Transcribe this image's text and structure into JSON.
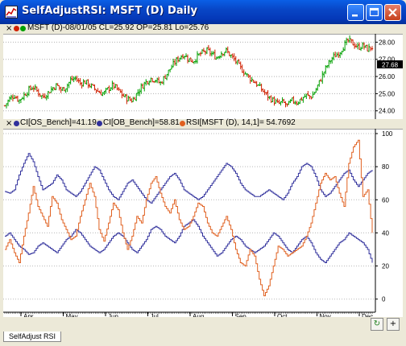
{
  "window": {
    "title": "SelfAdjustRSI: MSFT (D) Daily",
    "tab_label": "SelfAdjust RSI"
  },
  "price_pane": {
    "header": "MSFT (D)-08/01/05 CL=25.92 OP=25.81 Lo=25.76",
    "last_price_label": "27.68",
    "colors": {
      "up": "#00a000",
      "down": "#d02000"
    }
  },
  "indicator_pane": {
    "legend": [
      {
        "label": "CI[OS_Bench]=41.19",
        "color": "#30309c"
      },
      {
        "label": "CI[OB_Bench]=58.81",
        "color": "#30309c"
      },
      {
        "label": "RSI[MSFT (D), 14,1]= 54.7692",
        "color": "#e06020"
      }
    ]
  },
  "chart_data": [
    {
      "type": "bar",
      "title": "MSFT (D) Daily OHLC",
      "y_ticks": [
        "28.00",
        "27.00",
        "26.00",
        "25.00",
        "24.00"
      ],
      "ylim": [
        23.8,
        28.3
      ],
      "close_path": [
        24.3,
        24.7,
        24.9,
        24.6,
        24.9,
        25.2,
        25.4,
        25.1,
        24.8,
        25.0,
        25.3,
        25.5,
        25.2,
        25.4,
        25.8,
        25.9,
        25.6,
        25.7,
        25.5,
        25.3,
        25.1,
        25.0,
        25.3,
        25.5,
        25.2,
        24.9,
        24.7,
        24.6,
        25.0,
        25.4,
        25.7,
        25.9,
        25.8,
        25.6,
        26.0,
        26.4,
        26.8,
        27.1,
        27.3,
        27.0,
        26.9,
        27.2,
        27.4,
        27.5,
        27.3,
        27.1,
        27.4,
        27.5,
        27.2,
        26.9,
        26.5,
        26.2,
        25.9,
        25.7,
        25.4,
        25.1,
        24.8,
        24.6,
        24.4,
        24.5,
        24.3,
        24.6,
        24.5,
        24.7,
        24.9,
        24.8,
        25.2,
        25.8,
        26.4,
        26.9,
        27.2,
        27.4,
        27.8,
        28.1,
        27.9,
        27.7,
        27.8,
        27.6,
        27.7
      ]
    },
    {
      "type": "line",
      "title": "Self Adjusting RSI",
      "y_ticks": [
        "100",
        "80",
        "60",
        "40",
        "20",
        "0"
      ],
      "ylim": [
        -5,
        100
      ],
      "x_tick_labels": [
        "Apr.",
        "May",
        "Jun.",
        "Jul.",
        "Aug.",
        "Sep.",
        "Oct.",
        "Nov.",
        "Dec."
      ],
      "series": [
        {
          "name": "CI[OB_Bench]",
          "color": "#30309c",
          "values": [
            65,
            64,
            66,
            75,
            82,
            88,
            83,
            74,
            66,
            68,
            70,
            75,
            72,
            66,
            64,
            62,
            65,
            70,
            75,
            80,
            78,
            72,
            66,
            62,
            60,
            65,
            70,
            72,
            68,
            64,
            60,
            58,
            62,
            66,
            70,
            74,
            76,
            72,
            66,
            64,
            62,
            60,
            62,
            66,
            70,
            74,
            78,
            82,
            80,
            76,
            70,
            66,
            64,
            62,
            62,
            64,
            66,
            64,
            62,
            60,
            64,
            70,
            74,
            80,
            82,
            80,
            74,
            66,
            62,
            64,
            68,
            72,
            76,
            78,
            72,
            68,
            72,
            76,
            78
          ]
        },
        {
          "name": "CI[OS_Bench]",
          "color": "#30309c",
          "values": [
            38,
            40,
            36,
            32,
            30,
            27,
            28,
            32,
            34,
            32,
            30,
            28,
            32,
            36,
            38,
            42,
            40,
            36,
            32,
            30,
            28,
            30,
            34,
            38,
            40,
            38,
            34,
            30,
            28,
            32,
            36,
            42,
            44,
            42,
            38,
            36,
            34,
            38,
            44,
            46,
            48,
            44,
            38,
            34,
            30,
            26,
            28,
            32,
            36,
            38,
            36,
            32,
            30,
            28,
            30,
            32,
            36,
            40,
            38,
            34,
            30,
            28,
            32,
            36,
            38,
            34,
            28,
            24,
            22,
            26,
            30,
            34,
            36,
            40,
            38,
            36,
            34,
            30,
            22
          ]
        },
        {
          "name": "RSI",
          "color": "#e06020",
          "values": [
            30,
            36,
            28,
            22,
            38,
            52,
            68,
            56,
            50,
            44,
            62,
            58,
            48,
            42,
            36,
            38,
            50,
            60,
            70,
            62,
            42,
            35,
            46,
            58,
            54,
            40,
            30,
            38,
            50,
            46,
            60,
            70,
            74,
            64,
            56,
            52,
            60,
            48,
            42,
            44,
            50,
            58,
            56,
            46,
            40,
            38,
            44,
            50,
            42,
            30,
            22,
            20,
            30,
            26,
            12,
            2,
            8,
            20,
            32,
            30,
            26,
            28,
            30,
            32,
            38,
            46,
            58,
            70,
            76,
            72,
            74,
            64,
            56,
            82,
            92,
            96,
            62,
            66,
            40
          ]
        }
      ]
    }
  ]
}
